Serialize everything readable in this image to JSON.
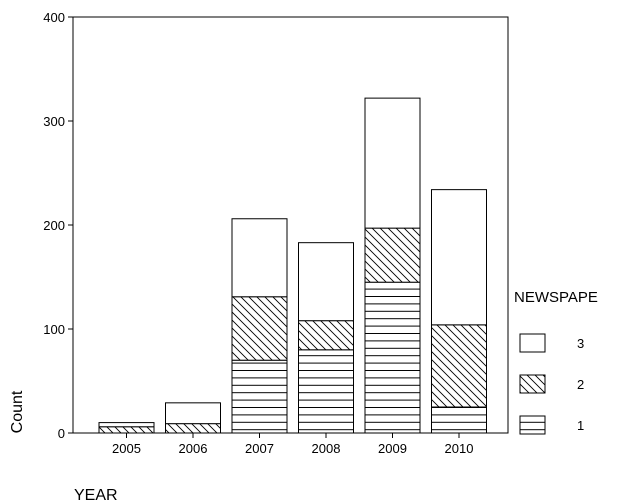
{
  "chart_data": {
    "type": "bar",
    "stacked": true,
    "xlabel": "YEAR",
    "ylabel": "Count",
    "ylim": [
      0,
      400
    ],
    "yticks": [
      0,
      100,
      200,
      300,
      400
    ],
    "categories": [
      "2005",
      "2006",
      "2007",
      "2008",
      "2009",
      "2010"
    ],
    "legend_title": "NEWSPAPE",
    "legend_position": "right",
    "grid": false,
    "series": [
      {
        "name": "1",
        "pattern": "horizontal-lines",
        "values": [
          0,
          0,
          70,
          80,
          145,
          25
        ]
      },
      {
        "name": "2",
        "pattern": "diagonal-hatch",
        "values": [
          6,
          9,
          61,
          28,
          52,
          79
        ]
      },
      {
        "name": "3",
        "pattern": "blank",
        "values": [
          4,
          20,
          75,
          75,
          125,
          130
        ]
      }
    ],
    "legend_order": [
      "3",
      "2",
      "1"
    ]
  }
}
